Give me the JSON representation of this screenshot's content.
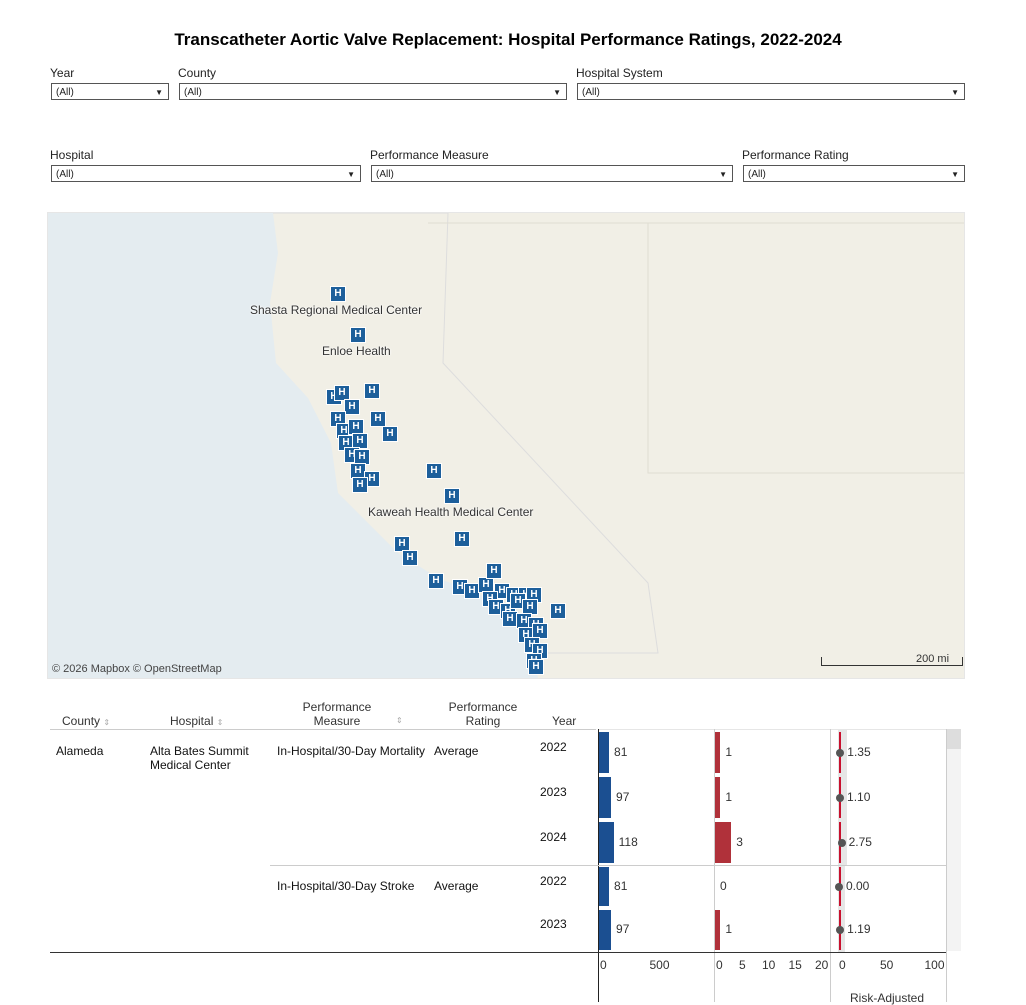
{
  "title": "Transcatheter Aortic Valve Replacement: Hospital Performance Ratings, 2022-2024",
  "filters": [
    {
      "label": "Year",
      "value": "(All)"
    },
    {
      "label": "County",
      "value": "(All)"
    },
    {
      "label": "Hospital System",
      "value": "(All)"
    },
    {
      "label": "Hospital",
      "value": "(All)"
    },
    {
      "label": "Performance Measure",
      "value": "(All)"
    },
    {
      "label": "Performance Rating",
      "value": "(All)"
    }
  ],
  "map": {
    "labels": [
      "Shasta Regional Medical Center",
      "Enloe Health",
      "Kaweah Health Medical Center"
    ],
    "attribution": "© 2026 Mapbox © OpenStreetMap",
    "scale": "200 mi",
    "marker_icon": "hospital-icon",
    "marker_glyph": "H",
    "marker_color": "#1d5f9b"
  },
  "table": {
    "headers": {
      "county": "County",
      "hospital": "Hospital",
      "measure": "Performance Measure",
      "rating": "Performance Rating",
      "year": "Year"
    },
    "county": "Alameda",
    "hospital": "Alta Bates Summit Medical Center",
    "groups": [
      {
        "measure": "In-Hospital/30-Day Mortality",
        "rating": "Average",
        "rows": [
          {
            "year": "2022",
            "cases": 81,
            "events": 1,
            "rate": "1.35"
          },
          {
            "year": "2023",
            "cases": 97,
            "events": 1,
            "rate": "1.10"
          },
          {
            "year": "2024",
            "cases": 118,
            "events": 3,
            "rate": "2.75"
          }
        ]
      },
      {
        "measure": "In-Hospital/30-Day Stroke",
        "rating": "Average",
        "rows": [
          {
            "year": "2022",
            "cases": 81,
            "events": 0,
            "rate": "0.00"
          },
          {
            "year": "2023",
            "cases": 97,
            "events": 1,
            "rate": "1.19"
          }
        ]
      }
    ],
    "axes": [
      {
        "ticks": [
          "0",
          "500"
        ]
      },
      {
        "ticks": [
          "0",
          "5",
          "10",
          "15",
          "20"
        ]
      },
      {
        "ticks": [
          "0",
          "50",
          "100"
        ]
      }
    ],
    "axis3_label": "Risk-Adjusted",
    "colors": {
      "cases": "#1b4f91",
      "events": "#b0313a",
      "rate_line": "#c8102e",
      "dot": "#555"
    }
  }
}
